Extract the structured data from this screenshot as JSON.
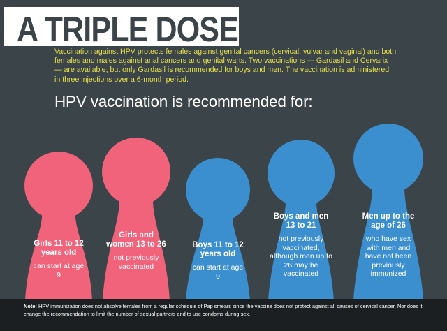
{
  "title": "A TRIPLE DOSE",
  "intro": "Vaccination against HPV protects females against genital cancers (cervical, vulvar and vaginal) and both females and males against anal cancers and genital warts.  Two vaccinations — Gardasil and Cervarix — are available, but only Gardasil is recommended for boys and men. The vaccination is administered in three injections over a 6-month period.",
  "heading": "HPV vaccination is recommended for:",
  "groups": [
    {
      "title": "Girls 11 to 12 years old",
      "detail": "can start at age 9",
      "color": "#f0637b"
    },
    {
      "title": "Girls and women 13 to 26",
      "detail": "not previously vaccinated",
      "color": "#f0637b"
    },
    {
      "title": "Boys 11 to 12 years old",
      "detail": "can start at age 9",
      "color": "#3c8fce"
    },
    {
      "title": "Boys and men 13 to 21",
      "detail": "not previously vaccinated, although men up to 26 may be vaccinated",
      "color": "#3c8fce"
    },
    {
      "title": "Men up to the age of 26",
      "detail": "who have sex with men and have not been previously immunized",
      "color": "#3c8fce"
    }
  ],
  "note": {
    "label": "Note:",
    "text": "HPV immunization does not absolve females from a regular schedule of Pap smears since the vaccine does not protect against all causes of cervical cancer. Nor does it change the recommendation to limit the number of sexual partners and to use condoms during sex."
  },
  "colors": {
    "background": "#3b4449",
    "female": "#f0637b",
    "male": "#3c8fce",
    "intro_text": "#e5e04a",
    "note_bar": "#1c1f21"
  }
}
